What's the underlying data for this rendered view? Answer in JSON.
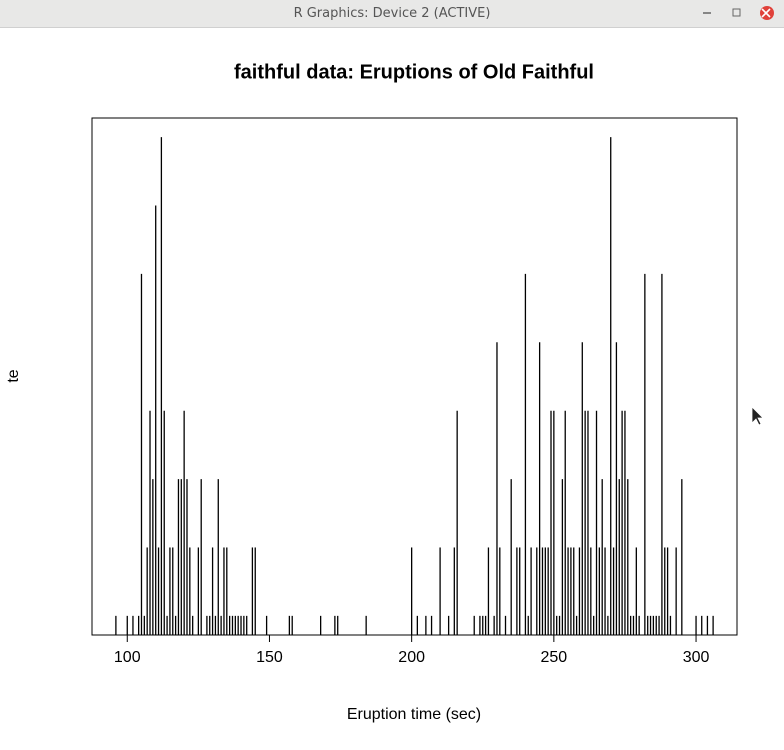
{
  "window_title": "R Graphics: Device 2 (ACTIVE)",
  "chart_data": {
    "type": "spike",
    "title": "faithful data: Eruptions of Old Faithful",
    "xlabel": "Eruption time (sec)",
    "ylabel": "te",
    "color": "#000000",
    "x": [
      96,
      100,
      102,
      104,
      105,
      106,
      107,
      108,
      109,
      110,
      111,
      112,
      113,
      114,
      115,
      116,
      117,
      118,
      119,
      120,
      121,
      122,
      123,
      125,
      126,
      128,
      129,
      130,
      131,
      132,
      133,
      134,
      135,
      136,
      137,
      138,
      139,
      140,
      141,
      142,
      144,
      145,
      149,
      157,
      158,
      168,
      173,
      174,
      184,
      200,
      202,
      205,
      207,
      210,
      213,
      215,
      216,
      222,
      224,
      225,
      226,
      227,
      229,
      230,
      231,
      233,
      235,
      237,
      238,
      240,
      241,
      242,
      244,
      245,
      246,
      247,
      248,
      249,
      250,
      251,
      252,
      253,
      254,
      255,
      256,
      257,
      258,
      259,
      260,
      261,
      262,
      263,
      264,
      265,
      266,
      267,
      268,
      269,
      270,
      271,
      272,
      273,
      274,
      275,
      276,
      277,
      278,
      279,
      280,
      282,
      283,
      284,
      285,
      286,
      287,
      288,
      289,
      290,
      291,
      293,
      295,
      300,
      302,
      304,
      306
    ],
    "values": [
      1,
      1,
      1,
      1,
      6,
      1,
      2,
      4,
      3,
      7,
      2,
      8,
      4,
      1,
      2,
      2,
      1,
      3,
      3,
      4,
      3,
      2,
      1,
      2,
      3,
      1,
      1,
      2,
      1,
      3,
      1,
      2,
      2,
      1,
      1,
      1,
      1,
      1,
      1,
      1,
      2,
      2,
      1,
      1,
      1,
      1,
      1,
      1,
      1,
      2,
      1,
      1,
      1,
      2,
      1,
      2,
      4,
      1,
      1,
      1,
      1,
      2,
      1,
      5,
      2,
      1,
      3,
      2,
      2,
      6,
      1,
      2,
      2,
      5,
      2,
      2,
      2,
      4,
      4,
      1,
      1,
      3,
      4,
      2,
      2,
      2,
      1,
      2,
      5,
      4,
      4,
      2,
      1,
      4,
      2,
      3,
      2,
      1,
      8,
      2,
      5,
      3,
      4,
      4,
      3,
      1,
      1,
      2,
      1,
      6,
      1,
      1,
      1,
      1,
      1,
      6,
      2,
      2,
      1,
      2,
      3,
      1,
      1,
      1,
      1
    ],
    "xlim": [
      87.6,
      314.4
    ],
    "ylim": [
      0.72,
      8.28
    ],
    "xticks": [
      100,
      150,
      200,
      250,
      300
    ]
  }
}
